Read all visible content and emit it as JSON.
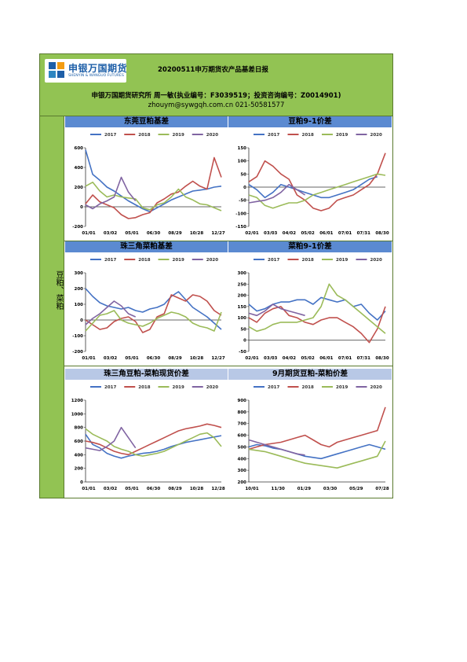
{
  "header": {
    "logo_cn": "申银万国期货",
    "logo_en": "SHENYIN & WANGUO FUTURES",
    "title": "20200511申万期货农产品基差日报",
    "author": "申银万国期货研究所 周一敏(执业编号：F3039519；投资咨询编号：Z0014901)",
    "contact": "zhouym@sywgqh.com.cn 021-50581577"
  },
  "side_label": "豆粕、菜粕",
  "colors": {
    "s2017": "#4472c4",
    "s2018": "#c0504d",
    "s2019": "#9bbb59",
    "s2020": "#8064a2"
  },
  "chart_data": [
    {
      "type": "line",
      "title": "东莞豆粕基差",
      "legend": [
        "2017",
        "2018",
        "2019",
        "2020"
      ],
      "x_ticks": [
        "01/01",
        "03/02",
        "05/01",
        "06/30",
        "08/29",
        "10/28",
        "12/27"
      ],
      "ylim": [
        -200,
        600
      ],
      "y_ticks": [
        -200,
        0,
        200,
        400,
        600
      ],
      "series": [
        {
          "name": "2017",
          "values": [
            580,
            330,
            270,
            200,
            160,
            110,
            60,
            20,
            -20,
            -50,
            -10,
            30,
            70,
            100,
            130,
            160,
            170,
            180,
            200,
            210
          ]
        },
        {
          "name": "2018",
          "values": [
            30,
            120,
            50,
            20,
            -10,
            -80,
            -120,
            -110,
            -80,
            -60,
            40,
            80,
            130,
            150,
            210,
            260,
            210,
            180,
            500,
            300
          ]
        },
        {
          "name": "2019",
          "values": [
            210,
            250,
            160,
            100,
            120,
            100,
            90,
            80,
            -10,
            -30,
            20,
            40,
            100,
            180,
            100,
            70,
            30,
            20,
            -10,
            -40
          ]
        },
        {
          "name": "2020",
          "values": [
            20,
            -20,
            30,
            60,
            100,
            300,
            150,
            60
          ]
        }
      ]
    },
    {
      "type": "line",
      "title": "豆粕9-1价差",
      "legend": [
        "2017",
        "2018",
        "2019",
        "2020"
      ],
      "x_ticks": [
        "02/01",
        "03/03",
        "04/02",
        "05/02",
        "06/01",
        "07/01",
        "07/31",
        "08/30"
      ],
      "ylim": [
        -150,
        150
      ],
      "y_ticks": [
        -150,
        -100,
        -50,
        0,
        50,
        100,
        150
      ],
      "series": [
        {
          "name": "2017",
          "values": [
            10,
            -10,
            -40,
            -20,
            10,
            0,
            -10,
            -20,
            -30,
            -40,
            -40,
            -30,
            -20,
            -10,
            10,
            30,
            40
          ]
        },
        {
          "name": "2018",
          "values": [
            20,
            40,
            100,
            80,
            50,
            30,
            -30,
            -50,
            -80,
            -90,
            -80,
            -50,
            -40,
            -30,
            -10,
            10,
            50,
            130
          ]
        },
        {
          "name": "2019",
          "values": [
            -30,
            -40,
            -70,
            -80,
            -70,
            -60,
            -60,
            -50,
            -30,
            -20,
            -10,
            0,
            10,
            20,
            30,
            40,
            50,
            45
          ]
        },
        {
          "name": "2020",
          "values": [
            -60,
            -55,
            -50,
            -40,
            -20,
            10,
            -10,
            -30
          ]
        }
      ]
    },
    {
      "type": "line",
      "title": "珠三角菜粕基差",
      "legend": [
        "2017",
        "2018",
        "2019",
        "2020"
      ],
      "x_ticks": [
        "01/01",
        "03/02",
        "05/01",
        "06/30",
        "08/29",
        "10/28",
        "12/27"
      ],
      "ylim": [
        -200,
        300
      ],
      "y_ticks": [
        -200,
        -100,
        0,
        100,
        200,
        300
      ],
      "series": [
        {
          "name": "2017",
          "values": [
            200,
            150,
            110,
            90,
            80,
            70,
            80,
            60,
            50,
            70,
            80,
            100,
            150,
            180,
            130,
            80,
            50,
            20,
            -20,
            -60
          ]
        },
        {
          "name": "2018",
          "values": [
            0,
            -30,
            -60,
            -50,
            -10,
            10,
            20,
            -10,
            -80,
            -60,
            20,
            40,
            160,
            140,
            120,
            160,
            150,
            120,
            60,
            30
          ]
        },
        {
          "name": "2019",
          "values": [
            -70,
            -20,
            30,
            40,
            60,
            0,
            -20,
            -30,
            -40,
            -20,
            10,
            30,
            50,
            40,
            20,
            -20,
            -40,
            -50,
            -70,
            50
          ]
        },
        {
          "name": "2020",
          "values": [
            -30,
            10,
            40,
            80,
            120,
            90,
            40,
            20
          ]
        }
      ]
    },
    {
      "type": "line",
      "title": "菜粕9-1价差",
      "legend": [
        "2017",
        "2018",
        "2019",
        "2020"
      ],
      "x_ticks": [
        "02/01",
        "03/03",
        "04/02",
        "05/02",
        "06/01",
        "07/01",
        "07/31",
        "08/30"
      ],
      "ylim": [
        -50,
        300
      ],
      "y_ticks": [
        -50,
        0,
        50,
        100,
        150,
        200,
        250,
        300
      ],
      "series": [
        {
          "name": "2017",
          "values": [
            160,
            130,
            140,
            160,
            170,
            170,
            180,
            180,
            160,
            190,
            180,
            170,
            180,
            150,
            160,
            120,
            90,
            130
          ]
        },
        {
          "name": "2018",
          "values": [
            100,
            80,
            120,
            140,
            150,
            110,
            100,
            80,
            70,
            90,
            100,
            100,
            80,
            60,
            30,
            -10,
            50,
            150
          ]
        },
        {
          "name": "2019",
          "values": [
            60,
            40,
            50,
            70,
            80,
            80,
            80,
            90,
            100,
            150,
            250,
            200,
            180,
            150,
            120,
            90,
            60,
            30
          ]
        },
        {
          "name": "2020",
          "values": [
            120,
            110,
            130,
            160,
            140,
            130,
            120,
            110
          ]
        }
      ]
    },
    {
      "type": "line",
      "title": "珠三角豆粕-菜粕现货价差",
      "legend": [
        "2017",
        "2018",
        "2019",
        "2020"
      ],
      "x_ticks": [
        "01/01",
        "03/02",
        "05/01",
        "06/30",
        "08/29",
        "10/28",
        "12/28"
      ],
      "ylim": [
        0,
        1200
      ],
      "y_ticks": [
        0,
        200,
        400,
        600,
        800,
        1000,
        1200
      ],
      "series": [
        {
          "name": "2017",
          "values": [
            700,
            550,
            500,
            420,
            380,
            350,
            380,
            400,
            420,
            430,
            450,
            480,
            520,
            550,
            580,
            600,
            620,
            640,
            660,
            680
          ]
        },
        {
          "name": "2018",
          "values": [
            600,
            580,
            550,
            500,
            450,
            420,
            400,
            450,
            500,
            550,
            600,
            650,
            700,
            750,
            780,
            800,
            820,
            850,
            830,
            800
          ]
        },
        {
          "name": "2019",
          "values": [
            780,
            700,
            650,
            600,
            520,
            480,
            450,
            400,
            380,
            400,
            420,
            450,
            500,
            550,
            600,
            650,
            700,
            720,
            650,
            520
          ]
        },
        {
          "name": "2020",
          "values": [
            500,
            480,
            460,
            520,
            600,
            800,
            650,
            500
          ]
        }
      ]
    },
    {
      "type": "line",
      "title": "9月期货豆粕-菜粕价差",
      "legend": [
        "2017",
        "2018",
        "2019",
        "2020"
      ],
      "x_ticks": [
        "10/01",
        "11/30",
        "01/29",
        "03/30",
        "05/29",
        "07/28"
      ],
      "ylim": [
        200,
        900
      ],
      "y_ticks": [
        200,
        300,
        400,
        500,
        600,
        700,
        800,
        900
      ],
      "series": [
        {
          "name": "2017",
          "values": [
            500,
            520,
            510,
            490,
            480,
            460,
            440,
            420,
            410,
            400,
            420,
            440,
            460,
            480,
            500,
            520,
            500,
            480
          ]
        },
        {
          "name": "2018",
          "values": [
            480,
            500,
            520,
            530,
            540,
            560,
            580,
            600,
            560,
            520,
            500,
            540,
            560,
            580,
            600,
            620,
            640,
            840
          ]
        },
        {
          "name": "2019",
          "values": [
            480,
            470,
            460,
            440,
            420,
            400,
            380,
            360,
            350,
            340,
            330,
            320,
            340,
            360,
            380,
            400,
            420,
            550
          ]
        },
        {
          "name": "2020",
          "values": [
            560,
            540,
            520,
            500,
            480,
            460,
            440,
            430
          ]
        }
      ]
    }
  ]
}
